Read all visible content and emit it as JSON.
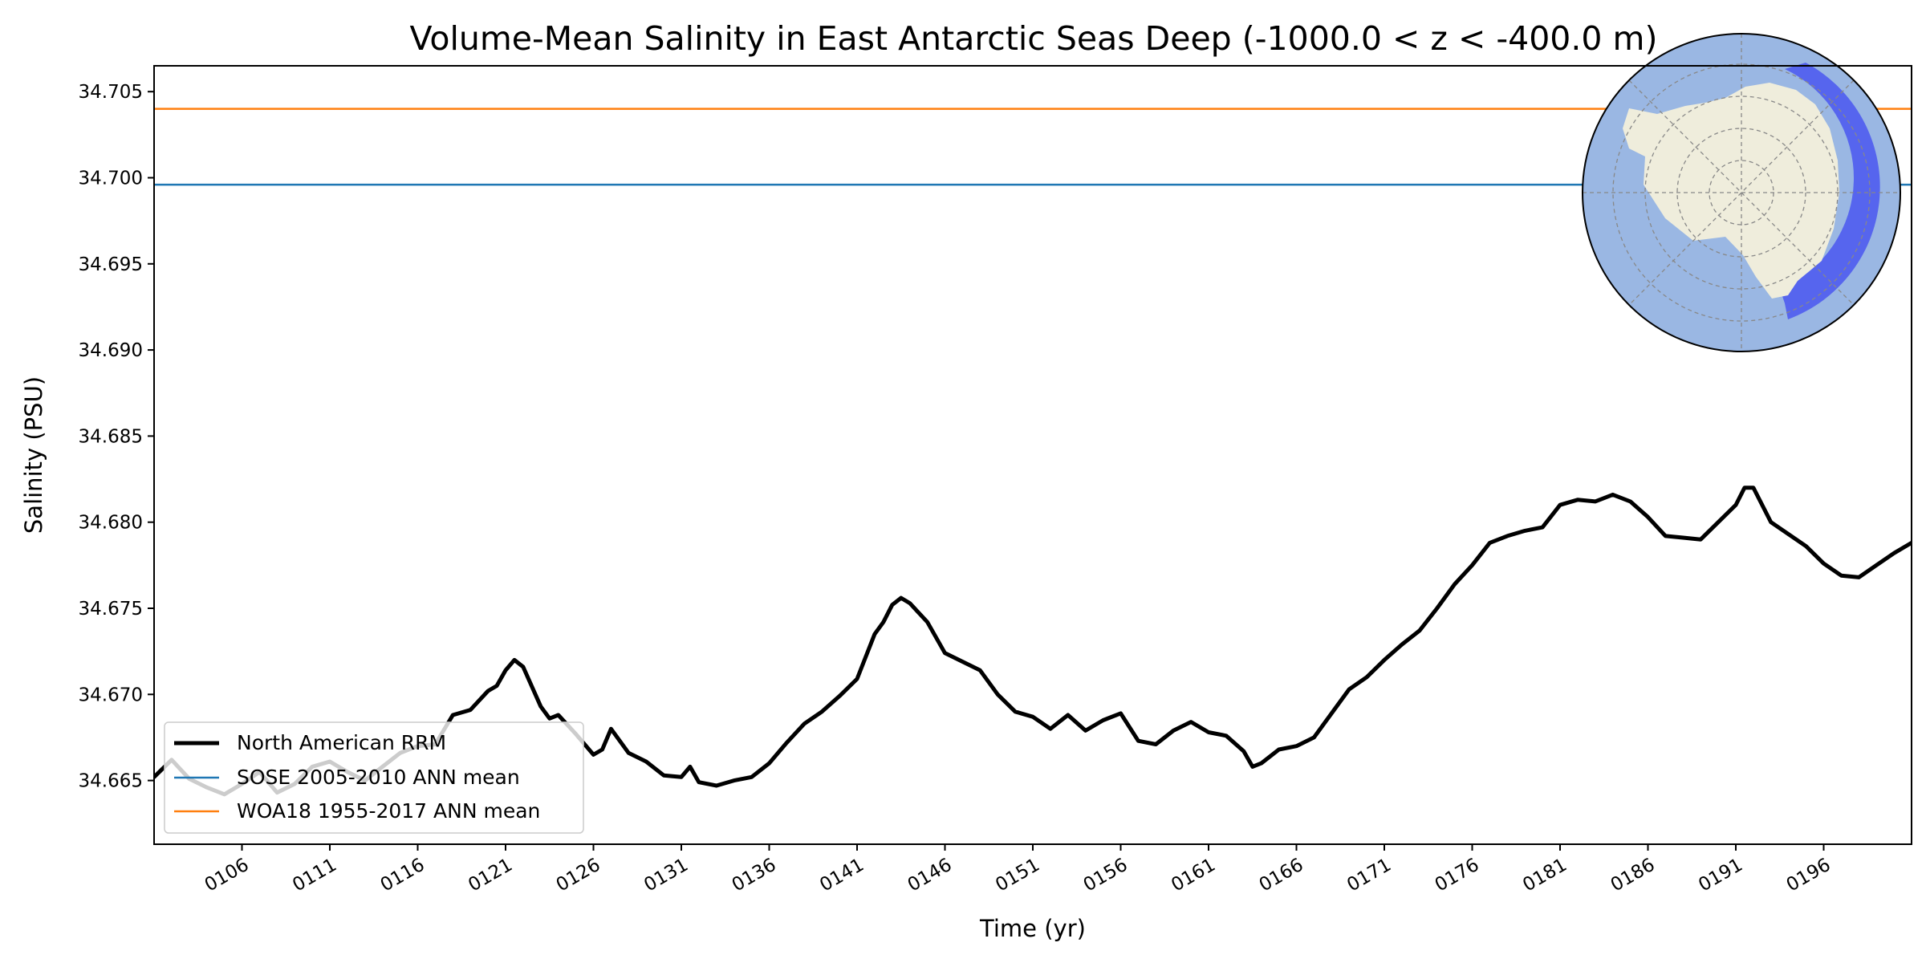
{
  "chart_data": {
    "type": "line",
    "title": "Volume-Mean Salinity in East Antarctic Seas Deep (-1000.0 < z < -400.0 m)",
    "xlabel": "Time (yr)",
    "ylabel": "Salinity (PSU)",
    "xlim": [
      101,
      201
    ],
    "ylim": [
      34.6613,
      34.7065
    ],
    "x_tick_labels": [
      "0106",
      "0111",
      "0116",
      "0121",
      "0126",
      "0131",
      "0136",
      "0141",
      "0146",
      "0151",
      "0156",
      "0161",
      "0166",
      "0171",
      "0176",
      "0181",
      "0186",
      "0191",
      "0196"
    ],
    "y_tick_labels": [
      "34.665",
      "34.670",
      "34.675",
      "34.680",
      "34.685",
      "34.690",
      "34.695",
      "34.700",
      "34.705"
    ],
    "grid": false,
    "legend_position": "lower-left",
    "series": [
      {
        "name": "North American RRM",
        "color": "#000000",
        "points": [
          [
            101,
            34.6652
          ],
          [
            102,
            34.6662
          ],
          [
            103,
            34.6651
          ],
          [
            104,
            34.6646
          ],
          [
            105,
            34.6642
          ],
          [
            106,
            34.6648
          ],
          [
            107,
            34.6655
          ],
          [
            108,
            34.6643
          ],
          [
            109,
            34.6648
          ],
          [
            110,
            34.6658
          ],
          [
            111,
            34.6661
          ],
          [
            112,
            34.6655
          ],
          [
            113,
            34.665
          ],
          [
            114,
            34.6658
          ],
          [
            115,
            34.6666
          ],
          [
            116,
            34.667
          ],
          [
            117,
            34.6671
          ],
          [
            118,
            34.6688
          ],
          [
            119,
            34.6691
          ],
          [
            120,
            34.6702
          ],
          [
            120.5,
            34.6705
          ],
          [
            121,
            34.6714
          ],
          [
            121.5,
            34.672
          ],
          [
            122,
            34.6716
          ],
          [
            123,
            34.6693
          ],
          [
            123.5,
            34.6686
          ],
          [
            124,
            34.6688
          ],
          [
            125,
            34.6677
          ],
          [
            126,
            34.6665
          ],
          [
            126.5,
            34.6668
          ],
          [
            127,
            34.668
          ],
          [
            128,
            34.6666
          ],
          [
            129,
            34.6661
          ],
          [
            130,
            34.6653
          ],
          [
            131,
            34.6652
          ],
          [
            131.5,
            34.6658
          ],
          [
            132,
            34.6649
          ],
          [
            133,
            34.6647
          ],
          [
            134,
            34.665
          ],
          [
            135,
            34.6652
          ],
          [
            136,
            34.666
          ],
          [
            137,
            34.6672
          ],
          [
            138,
            34.6683
          ],
          [
            139,
            34.669
          ],
          [
            140,
            34.6699
          ],
          [
            141,
            34.6709
          ],
          [
            142,
            34.6735
          ],
          [
            142.5,
            34.6742
          ],
          [
            143,
            34.6752
          ],
          [
            143.5,
            34.6756
          ],
          [
            144,
            34.6753
          ],
          [
            145,
            34.6742
          ],
          [
            146,
            34.6724
          ],
          [
            147,
            34.6719
          ],
          [
            148,
            34.6714
          ],
          [
            149,
            34.67
          ],
          [
            150,
            34.669
          ],
          [
            151,
            34.6687
          ],
          [
            152,
            34.668
          ],
          [
            153,
            34.6688
          ],
          [
            154,
            34.6679
          ],
          [
            155,
            34.6685
          ],
          [
            156,
            34.6689
          ],
          [
            157,
            34.6673
          ],
          [
            158,
            34.6671
          ],
          [
            159,
            34.6679
          ],
          [
            160,
            34.6684
          ],
          [
            161,
            34.6678
          ],
          [
            162,
            34.6676
          ],
          [
            163,
            34.6667
          ],
          [
            163.5,
            34.6658
          ],
          [
            164,
            34.666
          ],
          [
            165,
            34.6668
          ],
          [
            166,
            34.667
          ],
          [
            167,
            34.6675
          ],
          [
            168,
            34.6689
          ],
          [
            169,
            34.6703
          ],
          [
            170,
            34.671
          ],
          [
            171,
            34.672
          ],
          [
            172,
            34.6729
          ],
          [
            173,
            34.6737
          ],
          [
            174,
            34.675
          ],
          [
            175,
            34.6764
          ],
          [
            176,
            34.6775
          ],
          [
            177,
            34.6788
          ],
          [
            178,
            34.6792
          ],
          [
            179,
            34.6795
          ],
          [
            180,
            34.6797
          ],
          [
            181,
            34.681
          ],
          [
            182,
            34.6813
          ],
          [
            183,
            34.6812
          ],
          [
            184,
            34.6816
          ],
          [
            185,
            34.6812
          ],
          [
            186,
            34.6803
          ],
          [
            187,
            34.6792
          ],
          [
            188,
            34.6791
          ],
          [
            189,
            34.679
          ],
          [
            190,
            34.68
          ],
          [
            191,
            34.681
          ],
          [
            191.5,
            34.682
          ],
          [
            192,
            34.682
          ],
          [
            193,
            34.68
          ],
          [
            194,
            34.6793
          ],
          [
            195,
            34.6786
          ],
          [
            196,
            34.6776
          ],
          [
            197,
            34.6769
          ],
          [
            198,
            34.6768
          ],
          [
            199,
            34.6775
          ],
          [
            200,
            34.6782
          ],
          [
            201,
            34.6788
          ]
        ]
      },
      {
        "name": "SOSE 2005-2010 ANN mean",
        "color": "#1f77b4",
        "value": 34.6996
      },
      {
        "name": "WOA18 1955-2017 ANN mean",
        "color": "#ff7f0e",
        "value": 34.704
      }
    ]
  },
  "inset_map": {
    "icon": "antarctica-region-map-icon",
    "ocean_color": "#9ab7e3",
    "land_color": "#efeddc",
    "region_color": "#3f4ff0"
  }
}
